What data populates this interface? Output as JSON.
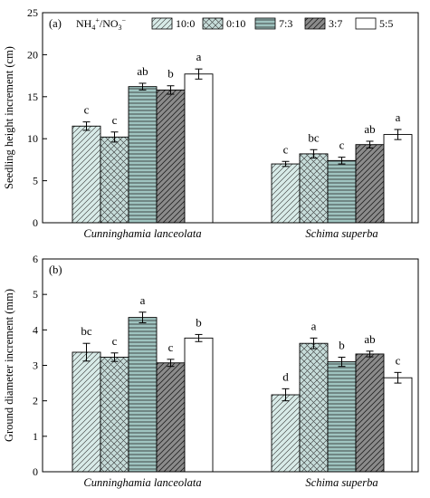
{
  "legend": {
    "title": "NH4+/NO3−",
    "entries": [
      "10:0",
      "0:10",
      "7:3",
      "3:7",
      "5:5"
    ]
  },
  "styles": [
    {
      "fill": "#d8ebe8",
      "pattern": "diagonal"
    },
    {
      "fill": "#c6dcd9",
      "pattern": "crosshatch"
    },
    {
      "fill": "#9fc4c0",
      "pattern": "horizontal"
    },
    {
      "fill": "#8b8b8b",
      "pattern": "diagonal-dark"
    },
    {
      "fill": "#ffffff",
      "pattern": "none"
    }
  ],
  "chart_data": [
    {
      "type": "bar",
      "panel": "(a)",
      "ylabel": "Seedling height increment (cm)",
      "ylim": [
        0,
        25
      ],
      "yticks": [
        0,
        5,
        10,
        15,
        20,
        25
      ],
      "categories": [
        "Cunninghamia lanceolata",
        "Schima superba"
      ],
      "series": [
        {
          "name": "10:0",
          "values": [
            11.5,
            7.0
          ],
          "errors": [
            0.5,
            0.3
          ],
          "letters": [
            "c",
            "c"
          ]
        },
        {
          "name": "0:10",
          "values": [
            10.2,
            8.2
          ],
          "errors": [
            0.6,
            0.5
          ],
          "letters": [
            "c",
            "bc"
          ]
        },
        {
          "name": "7:3",
          "values": [
            16.2,
            7.4
          ],
          "errors": [
            0.4,
            0.4
          ],
          "letters": [
            "ab",
            "c"
          ]
        },
        {
          "name": "3:7",
          "values": [
            15.8,
            9.3
          ],
          "errors": [
            0.5,
            0.4
          ],
          "letters": [
            "b",
            "ab"
          ]
        },
        {
          "name": "5:5",
          "values": [
            17.7,
            10.5
          ],
          "errors": [
            0.6,
            0.6
          ],
          "letters": [
            "a",
            "a"
          ]
        }
      ],
      "legend_position": "top-right"
    },
    {
      "type": "bar",
      "panel": "(b)",
      "ylabel": "Ground diameter increment (mm)",
      "ylim": [
        0,
        6
      ],
      "yticks": [
        0,
        1,
        2,
        3,
        4,
        5,
        6
      ],
      "categories": [
        "Cunninghamia lanceolata",
        "Schima superba"
      ],
      "series": [
        {
          "name": "10:0",
          "values": [
            3.37,
            2.17
          ],
          "errors": [
            0.25,
            0.17
          ],
          "letters": [
            "bc",
            "d"
          ]
        },
        {
          "name": "0:10",
          "values": [
            3.23,
            3.62
          ],
          "errors": [
            0.12,
            0.15
          ],
          "letters": [
            "c",
            "a"
          ]
        },
        {
          "name": "7:3",
          "values": [
            4.35,
            3.1
          ],
          "errors": [
            0.15,
            0.13
          ],
          "letters": [
            "a",
            "b"
          ]
        },
        {
          "name": "3:7",
          "values": [
            3.07,
            3.32
          ],
          "errors": [
            0.1,
            0.08
          ],
          "letters": [
            "c",
            "ab"
          ]
        },
        {
          "name": "5:5",
          "values": [
            3.77,
            2.65
          ],
          "errors": [
            0.1,
            0.15
          ],
          "letters": [
            "b",
            "c"
          ]
        }
      ]
    }
  ]
}
